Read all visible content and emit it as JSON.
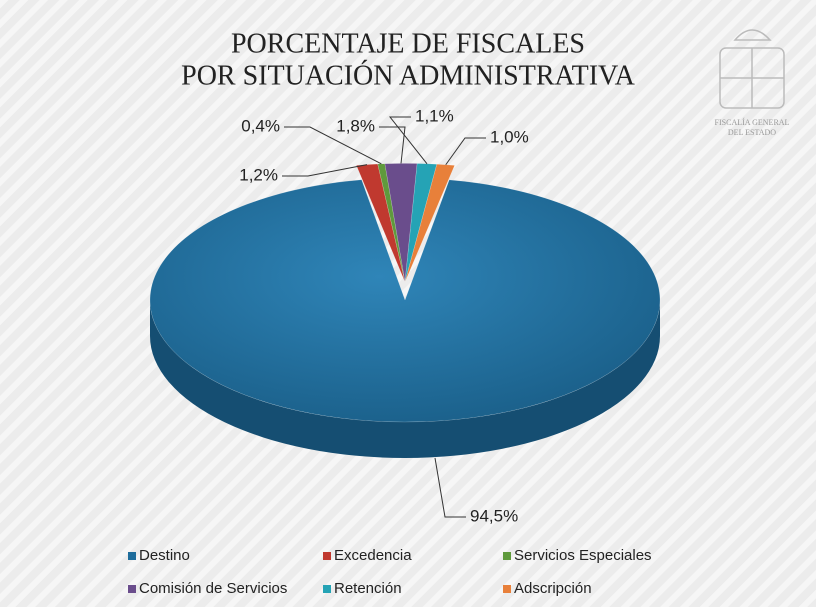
{
  "chart_data": {
    "type": "pie",
    "title": [
      "PORCENTAJE DE FISCALES",
      "POR SITUACIÓN ADMINISTRATIVA"
    ],
    "logo": [
      "FISCALÍA GENERAL",
      "DEL ESTADO"
    ],
    "categories": [
      "Destino",
      "Excedencia",
      "Servicios Especiales",
      "Comisión de Servicios",
      "Retención",
      "Adscripción"
    ],
    "values": [
      94.5,
      1.2,
      0.4,
      1.8,
      1.1,
      1.0
    ],
    "value_labels": [
      "94,5%",
      "1,2%",
      "0,4%",
      "1,8%",
      "1,1%",
      "1,0%"
    ],
    "colors": [
      "#1f6d9c",
      "#c0392f",
      "#5f9a3c",
      "#6a4d8c",
      "#25a3b5",
      "#e8803a"
    ],
    "legend": "bottom"
  }
}
